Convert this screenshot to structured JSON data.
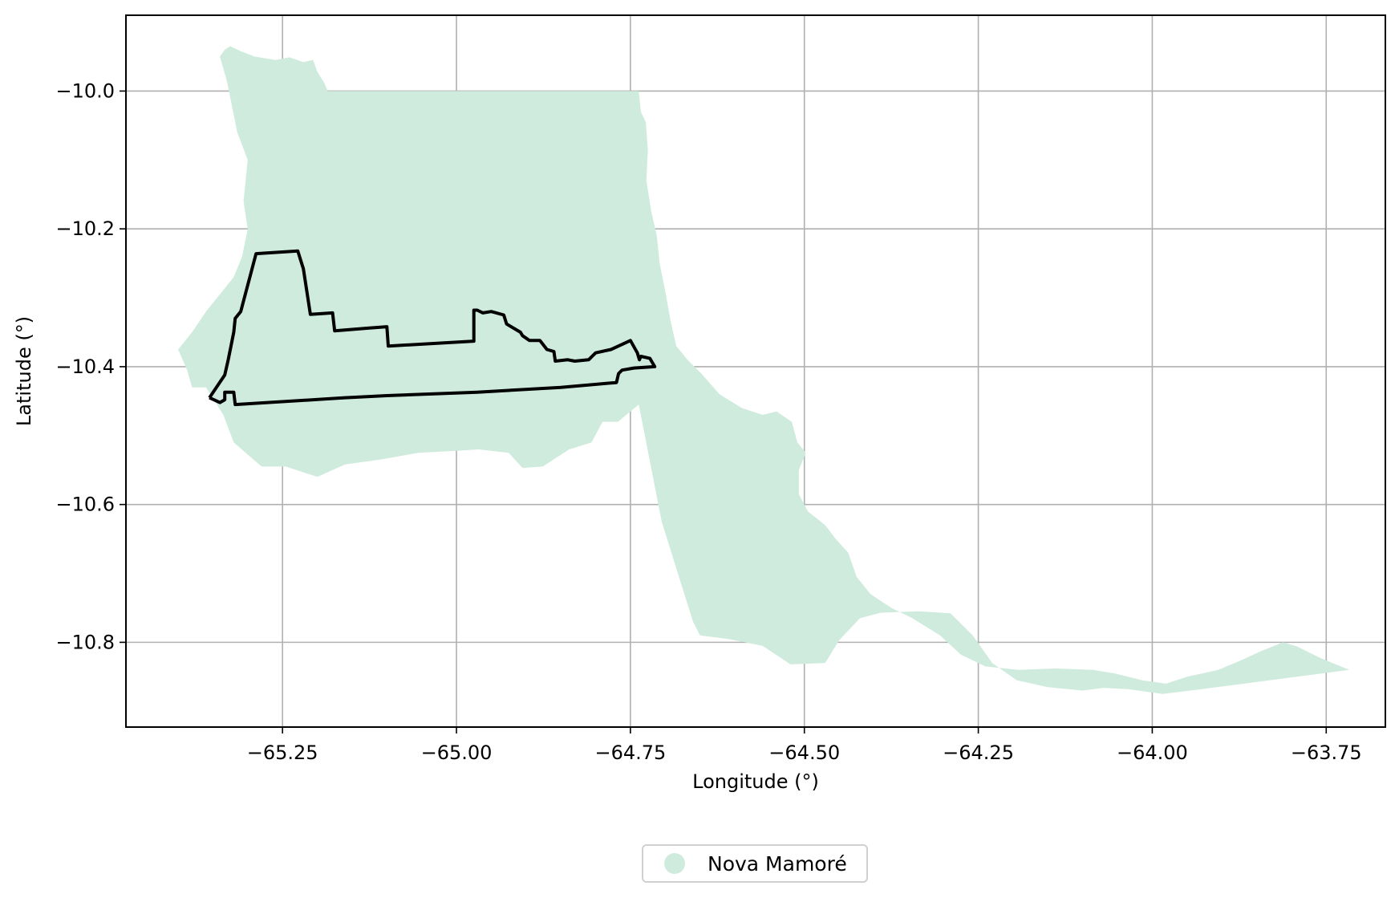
{
  "chart_data": {
    "type": "map",
    "xlabel": "Longitude (°)",
    "ylabel": "Latitude (°)",
    "xlim": [
      -65.475,
      -63.665
    ],
    "ylim": [
      -10.923,
      -9.89
    ],
    "x_ticks": [
      -65.25,
      -65.0,
      -64.75,
      -64.5,
      -64.25,
      -64.0,
      -63.75
    ],
    "y_ticks": [
      -10.0,
      -10.2,
      -10.4,
      -10.6,
      -10.8
    ],
    "x_tick_labels": [
      "−65.25",
      "−65.00",
      "−64.75",
      "−64.50",
      "−64.25",
      "−64.00",
      "−63.75"
    ],
    "y_tick_labels": [
      "−10.0",
      "−10.2",
      "−10.4",
      "−10.6",
      "−10.8"
    ],
    "grid": true,
    "legend_position": "bottom-center",
    "legend": [
      {
        "label": "Nova Mamoré",
        "color": "#cfebde",
        "marker": "circle"
      }
    ],
    "region_fill_color": "#cfebde",
    "outline_color": "#000000",
    "region_polygon": [
      [
        -65.333,
        -9.94
      ],
      [
        -65.325,
        -9.935
      ],
      [
        -65.31,
        -9.942
      ],
      [
        -65.29,
        -9.95
      ],
      [
        -65.26,
        -9.955
      ],
      [
        -65.24,
        -9.951
      ],
      [
        -65.22,
        -9.958
      ],
      [
        -65.206,
        -9.955
      ],
      [
        -65.2,
        -9.972
      ],
      [
        -65.19,
        -9.988
      ],
      [
        -65.185,
        -10.0
      ],
      [
        -64.738,
        -10.0
      ],
      [
        -64.735,
        -10.03
      ],
      [
        -64.728,
        -10.045
      ],
      [
        -64.725,
        -10.085
      ],
      [
        -64.727,
        -10.13
      ],
      [
        -64.72,
        -10.175
      ],
      [
        -64.712,
        -10.21
      ],
      [
        -64.708,
        -10.25
      ],
      [
        -64.7,
        -10.29
      ],
      [
        -64.692,
        -10.335
      ],
      [
        -64.684,
        -10.37
      ],
      [
        -64.668,
        -10.39
      ],
      [
        -64.648,
        -10.41
      ],
      [
        -64.622,
        -10.44
      ],
      [
        -64.59,
        -10.46
      ],
      [
        -64.56,
        -10.47
      ],
      [
        -64.54,
        -10.465
      ],
      [
        -64.518,
        -10.48
      ],
      [
        -64.51,
        -10.51
      ],
      [
        -64.498,
        -10.525
      ],
      [
        -64.508,
        -10.55
      ],
      [
        -64.508,
        -10.585
      ],
      [
        -64.495,
        -10.61
      ],
      [
        -64.47,
        -10.63
      ],
      [
        -64.455,
        -10.65
      ],
      [
        -64.437,
        -10.67
      ],
      [
        -64.425,
        -10.705
      ],
      [
        -64.405,
        -10.73
      ],
      [
        -64.375,
        -10.75
      ],
      [
        -64.345,
        -10.765
      ],
      [
        -64.305,
        -10.79
      ],
      [
        -64.275,
        -10.818
      ],
      [
        -64.24,
        -10.835
      ],
      [
        -64.192,
        -10.84
      ],
      [
        -64.14,
        -10.838
      ],
      [
        -64.085,
        -10.84
      ],
      [
        -64.055,
        -10.845
      ],
      [
        -64.015,
        -10.855
      ],
      [
        -63.98,
        -10.86
      ],
      [
        -63.95,
        -10.85
      ],
      [
        -63.905,
        -10.84
      ],
      [
        -63.87,
        -10.825
      ],
      [
        -63.842,
        -10.812
      ],
      [
        -63.812,
        -10.8
      ],
      [
        -63.792,
        -10.806
      ],
      [
        -63.76,
        -10.822
      ],
      [
        -63.717,
        -10.84
      ],
      [
        -63.845,
        -10.857
      ],
      [
        -63.945,
        -10.87
      ],
      [
        -63.985,
        -10.875
      ],
      [
        -64.035,
        -10.868
      ],
      [
        -64.07,
        -10.866
      ],
      [
        -64.1,
        -10.87
      ],
      [
        -64.15,
        -10.865
      ],
      [
        -64.195,
        -10.855
      ],
      [
        -64.23,
        -10.83
      ],
      [
        -64.258,
        -10.79
      ],
      [
        -64.29,
        -10.758
      ],
      [
        -64.335,
        -10.755
      ],
      [
        -64.39,
        -10.757
      ],
      [
        -64.42,
        -10.765
      ],
      [
        -64.45,
        -10.797
      ],
      [
        -64.47,
        -10.83
      ],
      [
        -64.52,
        -10.832
      ],
      [
        -64.56,
        -10.805
      ],
      [
        -64.61,
        -10.795
      ],
      [
        -64.65,
        -10.79
      ],
      [
        -64.66,
        -10.77
      ],
      [
        -64.705,
        -10.625
      ],
      [
        -64.738,
        -10.455
      ],
      [
        -64.768,
        -10.48
      ],
      [
        -64.79,
        -10.48
      ],
      [
        -64.806,
        -10.51
      ],
      [
        -64.838,
        -10.52
      ],
      [
        -64.876,
        -10.545
      ],
      [
        -64.905,
        -10.547
      ],
      [
        -64.925,
        -10.525
      ],
      [
        -64.968,
        -10.52
      ],
      [
        -65.0,
        -10.522
      ],
      [
        -65.055,
        -10.525
      ],
      [
        -65.11,
        -10.535
      ],
      [
        -65.16,
        -10.542
      ],
      [
        -65.2,
        -10.56
      ],
      [
        -65.245,
        -10.545
      ],
      [
        -65.28,
        -10.545
      ],
      [
        -65.32,
        -10.51
      ],
      [
        -65.335,
        -10.47
      ],
      [
        -65.36,
        -10.43
      ],
      [
        -65.38,
        -10.43
      ],
      [
        -65.387,
        -10.405
      ],
      [
        -65.4,
        -10.375
      ],
      [
        -65.38,
        -10.35
      ],
      [
        -65.36,
        -10.32
      ],
      [
        -65.34,
        -10.295
      ],
      [
        -65.32,
        -10.27
      ],
      [
        -65.308,
        -10.24
      ],
      [
        -65.3,
        -10.2
      ],
      [
        -65.306,
        -10.16
      ],
      [
        -65.3,
        -10.1
      ],
      [
        -65.315,
        -10.06
      ],
      [
        -65.325,
        -10.01
      ],
      [
        -65.33,
        -9.985
      ],
      [
        -65.34,
        -9.95
      ]
    ],
    "outline_polyline": [
      [
        -65.355,
        -10.445
      ],
      [
        -65.34,
        -10.452
      ],
      [
        -65.333,
        -10.448
      ],
      [
        -65.333,
        -10.437
      ],
      [
        -65.32,
        -10.437
      ],
      [
        -65.318,
        -10.455
      ],
      [
        -65.19,
        -10.447
      ],
      [
        -65.16,
        -10.445
      ],
      [
        -65.1,
        -10.442
      ],
      [
        -64.97,
        -10.437
      ],
      [
        -64.85,
        -10.43
      ],
      [
        -64.77,
        -10.423
      ],
      [
        -64.767,
        -10.41
      ],
      [
        -64.762,
        -10.405
      ],
      [
        -64.745,
        -10.402
      ],
      [
        -64.715,
        -10.4
      ],
      [
        -64.722,
        -10.388
      ],
      [
        -64.735,
        -10.385
      ],
      [
        -64.737,
        -10.39
      ],
      [
        -64.74,
        -10.38
      ],
      [
        -64.75,
        -10.362
      ],
      [
        -64.778,
        -10.375
      ],
      [
        -64.8,
        -10.38
      ],
      [
        -64.81,
        -10.39
      ],
      [
        -64.83,
        -10.392
      ],
      [
        -64.84,
        -10.39
      ],
      [
        -64.858,
        -10.392
      ],
      [
        -64.86,
        -10.378
      ],
      [
        -64.87,
        -10.375
      ],
      [
        -64.88,
        -10.362
      ],
      [
        -64.895,
        -10.362
      ],
      [
        -64.905,
        -10.355
      ],
      [
        -64.908,
        -10.35
      ],
      [
        -64.928,
        -10.338
      ],
      [
        -64.932,
        -10.325
      ],
      [
        -64.95,
        -10.32
      ],
      [
        -64.962,
        -10.322
      ],
      [
        -64.97,
        -10.318
      ],
      [
        -64.975,
        -10.318
      ],
      [
        -64.975,
        -10.363
      ],
      [
        -65.098,
        -10.37
      ],
      [
        -65.1,
        -10.342
      ],
      [
        -65.125,
        -10.344
      ],
      [
        -65.175,
        -10.348
      ],
      [
        -65.178,
        -10.322
      ],
      [
        -65.21,
        -10.324
      ],
      [
        -65.22,
        -10.258
      ],
      [
        -65.228,
        -10.232
      ],
      [
        -65.288,
        -10.236
      ],
      [
        -65.31,
        -10.32
      ],
      [
        -65.318,
        -10.33
      ],
      [
        -65.32,
        -10.35
      ],
      [
        -65.328,
        -10.39
      ],
      [
        -65.333,
        -10.412
      ],
      [
        -65.355,
        -10.445
      ]
    ]
  }
}
